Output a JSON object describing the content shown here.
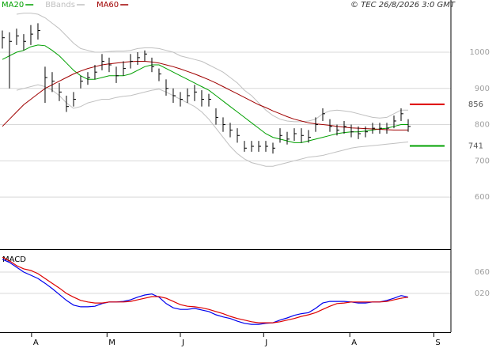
{
  "chart_data": [
    {
      "type": "ohlc",
      "source": "© TEC 26/8/2026 3:0 GMT",
      "x": [
        0,
        1,
        2,
        3,
        4,
        5,
        6,
        7,
        8,
        9,
        10,
        11,
        12,
        13,
        14,
        15,
        16,
        17,
        18,
        19,
        20,
        21,
        22,
        23,
        24,
        25,
        26,
        27,
        28,
        29,
        30,
        31,
        32,
        33,
        34,
        35,
        36,
        37,
        38,
        39,
        40,
        41,
        42,
        43,
        44,
        45,
        46,
        47,
        48,
        49,
        50,
        51,
        52,
        53,
        54,
        55,
        56,
        57
      ],
      "xlim": [
        -0.33,
        63
      ],
      "high": [
        1060,
        1055,
        1065,
        1050,
        1075,
        1080,
        960,
        945,
        915,
        880,
        890,
        935,
        945,
        965,
        995,
        985,
        960,
        975,
        995,
        1000,
        1005,
        985,
        955,
        925,
        900,
        890,
        900,
        910,
        895,
        885,
        845,
        820,
        805,
        790,
        755,
        755,
        755,
        755,
        750,
        790,
        780,
        790,
        790,
        785,
        820,
        845,
        815,
        800,
        810,
        800,
        795,
        795,
        805,
        805,
        805,
        825,
        845,
        815
      ],
      "low": [
        1010,
        900,
        1020,
        1005,
        1020,
        1035,
        860,
        890,
        865,
        835,
        850,
        900,
        910,
        925,
        950,
        945,
        915,
        935,
        955,
        965,
        975,
        945,
        920,
        880,
        860,
        850,
        860,
        865,
        850,
        850,
        800,
        780,
        765,
        750,
        725,
        725,
        725,
        725,
        720,
        750,
        745,
        755,
        750,
        750,
        780,
        810,
        780,
        770,
        775,
        765,
        760,
        765,
        775,
        775,
        775,
        790,
        810,
        780
      ],
      "close": [
        1040,
        1030,
        1045,
        1030,
        1050,
        1060,
        930,
        920,
        890,
        850,
        870,
        920,
        930,
        945,
        975,
        965,
        935,
        955,
        975,
        985,
        995,
        960,
        940,
        900,
        880,
        870,
        880,
        890,
        870,
        870,
        820,
        800,
        785,
        770,
        735,
        740,
        740,
        740,
        735,
        770,
        760,
        775,
        770,
        765,
        800,
        830,
        795,
        785,
        795,
        780,
        775,
        780,
        790,
        790,
        790,
        810,
        830,
        795
      ],
      "color": "#000000",
      "series": [
        {
          "name": "MA20",
          "color": "#00a000",
          "values": [
            980,
            990,
            1000,
            1005,
            1015,
            1020,
            1018,
            1005,
            990,
            970,
            950,
            935,
            925,
            925,
            930,
            935,
            935,
            935,
            940,
            950,
            960,
            965,
            965,
            955,
            945,
            935,
            925,
            915,
            905,
            895,
            880,
            865,
            850,
            835,
            820,
            805,
            790,
            775,
            765,
            760,
            755,
            750,
            750,
            755,
            760,
            765,
            770,
            775,
            778,
            780,
            780,
            782,
            785,
            788,
            790,
            795,
            800,
            800
          ]
        },
        {
          "name": "BBands",
          "color": "#c0c0c0",
          "upper": [
            null,
            null,
            1105,
            1108,
            1108,
            1105,
            1095,
            1080,
            1065,
            1045,
            1025,
            1010,
            1005,
            1000,
            1000,
            1002,
            1003,
            1003,
            1005,
            1010,
            1012,
            1012,
            1010,
            1005,
            1000,
            990,
            985,
            980,
            975,
            965,
            955,
            945,
            930,
            915,
            895,
            880,
            860,
            840,
            825,
            815,
            810,
            808,
            808,
            810,
            815,
            830,
            838,
            840,
            838,
            835,
            830,
            825,
            820,
            818,
            820,
            830,
            840,
            840
          ],
          "lower": [
            null,
            null,
            895,
            900,
            905,
            910,
            905,
            895,
            880,
            860,
            845,
            850,
            860,
            865,
            870,
            870,
            875,
            878,
            880,
            885,
            890,
            895,
            898,
            890,
            880,
            870,
            860,
            850,
            835,
            815,
            790,
            765,
            740,
            720,
            705,
            695,
            690,
            685,
            685,
            690,
            695,
            700,
            705,
            710,
            712,
            715,
            720,
            725,
            730,
            735,
            738,
            740,
            742,
            744,
            746,
            748,
            750,
            752
          ]
        },
        {
          "name": "MA60",
          "color": "#a00000",
          "values": [
            795,
            815,
            835,
            855,
            870,
            885,
            900,
            910,
            920,
            930,
            940,
            948,
            955,
            960,
            965,
            968,
            970,
            972,
            974,
            975,
            975,
            973,
            970,
            965,
            960,
            954,
            947,
            940,
            932,
            924,
            915,
            905,
            895,
            885,
            875,
            865,
            855,
            847,
            838,
            830,
            822,
            815,
            810,
            805,
            802,
            800,
            798,
            795,
            793,
            791,
            790,
            789,
            788,
            787,
            786,
            785,
            785,
            785
          ]
        }
      ],
      "annotations": [
        {
          "value": 856,
          "color": "#dd0000"
        },
        {
          "value": 741,
          "color": "#00a000"
        }
      ],
      "ylim": [
        456,
        1118
      ],
      "yticks": [
        600,
        700,
        800,
        900,
        1000
      ],
      "grid": true
    },
    {
      "type": "line",
      "title": "MACD",
      "series": [
        {
          "color": "#0000ee",
          "values": [
            84,
            78,
            69,
            60,
            54,
            48,
            39,
            29,
            18,
            7,
            -2,
            -5,
            -5,
            -4,
            1,
            4,
            4,
            5,
            8,
            13,
            17,
            19,
            13,
            1,
            -7,
            -10,
            -10,
            -8,
            -11,
            -14,
            -20,
            -24,
            -27,
            -32,
            -36,
            -38,
            -38,
            -36,
            -35,
            -30,
            -26,
            -21,
            -18,
            -16,
            -8,
            2,
            5,
            5,
            5,
            4,
            2,
            2,
            4,
            4,
            7,
            11,
            16,
            13
          ]
        },
        {
          "color": "#dd0000",
          "values": [
            88,
            81,
            72,
            66,
            63,
            57,
            48,
            39,
            30,
            20,
            13,
            7,
            4,
            2,
            2,
            4,
            4,
            4,
            5,
            8,
            11,
            14,
            14,
            11,
            5,
            -1,
            -4,
            -5,
            -7,
            -10,
            -14,
            -18,
            -23,
            -27,
            -30,
            -33,
            -35,
            -35,
            -35,
            -33,
            -30,
            -27,
            -23,
            -20,
            -16,
            -10,
            -4,
            1,
            2,
            4,
            4,
            4,
            4,
            4,
            5,
            8,
            11,
            13
          ]
        }
      ],
      "ylim": [
        -52.6,
        98.5
      ],
      "yticks": [
        {
          "value": 60,
          "label": "060"
        },
        {
          "value": 20,
          "label": "020"
        }
      ],
      "xticks": [
        {
          "value": 4.1,
          "label": "A"
        },
        {
          "value": 14.7,
          "label": "M"
        },
        {
          "value": 25,
          "label": "J"
        },
        {
          "value": 36.7,
          "label": "J"
        },
        {
          "value": 48.8,
          "label": "A"
        },
        {
          "value": 60.6,
          "label": "S"
        }
      ],
      "grid": true
    }
  ]
}
